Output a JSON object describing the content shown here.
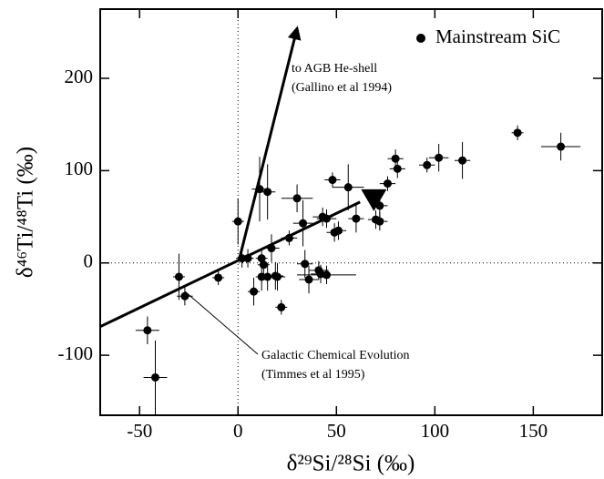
{
  "chart_data": {
    "type": "scatter",
    "x_label": "δ²⁹Si/²⁸Si (‰)",
    "y_label": "δ⁴⁶Ti/⁴⁸Ti (‰)",
    "xlim": [
      -70,
      185
    ],
    "ylim": [
      -165,
      275
    ],
    "xticks": [
      -50,
      0,
      50,
      100,
      150
    ],
    "yticks": [
      -100,
      0,
      100,
      200
    ],
    "legend_position": "upper right",
    "color": "#000000",
    "series": [
      {
        "name": "Mainstream SiC",
        "x": [
          -46,
          -42,
          -30,
          -27,
          -10,
          0,
          2,
          8,
          11,
          15,
          5,
          12,
          13,
          12,
          15,
          17,
          19,
          20,
          22,
          26,
          30,
          33,
          34,
          36,
          41,
          42,
          43,
          45,
          45,
          48,
          49,
          51,
          56,
          60,
          70,
          72,
          72,
          76,
          80,
          81,
          96,
          102,
          114,
          142,
          164
        ],
        "values": [
          -73,
          -124,
          -15,
          -36,
          -16,
          45,
          5,
          -31,
          80,
          77,
          5,
          5,
          -2,
          -15,
          -15,
          16,
          -14,
          -15,
          -48,
          27,
          70,
          43,
          -1,
          -18,
          -8,
          -12,
          50,
          48,
          -13,
          90,
          33,
          35,
          82,
          48,
          47,
          45,
          62,
          86,
          113,
          102,
          106,
          114,
          111,
          141,
          126
        ],
        "xerr": [
          6,
          6,
          3,
          4,
          3,
          3,
          3,
          3,
          4,
          4,
          3,
          3,
          3,
          3,
          4,
          4,
          4,
          4,
          3,
          4,
          8,
          5,
          4,
          5,
          5,
          5,
          5,
          5,
          15,
          4,
          4,
          4,
          8,
          4,
          4,
          4,
          4,
          4,
          4,
          4,
          4,
          5,
          4,
          3,
          10
        ],
        "yerr": [
          15,
          40,
          25,
          10,
          8,
          25,
          10,
          15,
          35,
          30,
          10,
          10,
          10,
          15,
          15,
          15,
          15,
          15,
          8,
          8,
          15,
          25,
          15,
          15,
          10,
          10,
          10,
          10,
          10,
          8,
          10,
          10,
          25,
          15,
          10,
          10,
          15,
          8,
          10,
          10,
          8,
          15,
          20,
          8,
          15
        ]
      }
    ],
    "trend_lines": [
      {
        "x": [
          -70,
          62
        ],
        "y": [
          -69,
          66
        ]
      }
    ],
    "arrows": [
      {
        "x": [
          1,
          30
        ],
        "y": [
          7,
          254
        ]
      }
    ],
    "markers": [
      {
        "x": 69,
        "y": 68
      }
    ],
    "annotations": [
      "to AGB He-shell",
      "(Gallino et al 1994)",
      "Galactic Chemical Evolution",
      "(Timmes et al 1995)"
    ]
  }
}
